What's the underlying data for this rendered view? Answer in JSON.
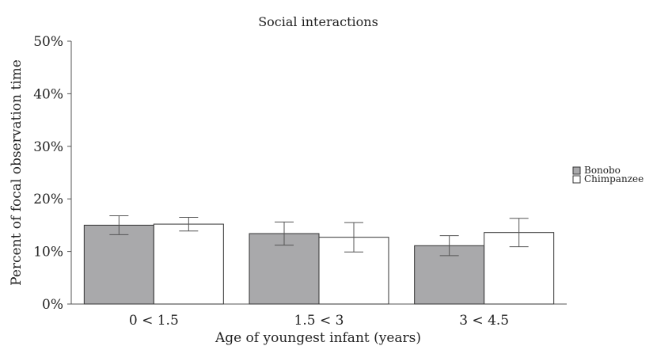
{
  "chart_data": {
    "type": "bar",
    "title": "Social interactions",
    "xlabel": "Age of youngest infant (years)",
    "ylabel": "Percent of focal observation time",
    "categories": [
      "0 < 1.5",
      "1.5 < 3",
      "3 < 4.5"
    ],
    "ylim": [
      0,
      50
    ],
    "yticks": [
      0,
      10,
      20,
      30,
      40,
      50
    ],
    "ytick_labels": [
      "0%",
      "10%",
      "20%",
      "30%",
      "40%",
      "50%"
    ],
    "grid": false,
    "legend_position": "right",
    "series": [
      {
        "name": "Bonobo",
        "color": "#a9a9ab",
        "values": [
          15.0,
          13.4,
          11.1
        ],
        "error": [
          1.8,
          2.2,
          1.9
        ]
      },
      {
        "name": "Chimpanzee",
        "color": "#ffffff",
        "values": [
          15.2,
          12.7,
          13.6
        ],
        "error": [
          1.3,
          2.8,
          2.7
        ]
      }
    ]
  }
}
